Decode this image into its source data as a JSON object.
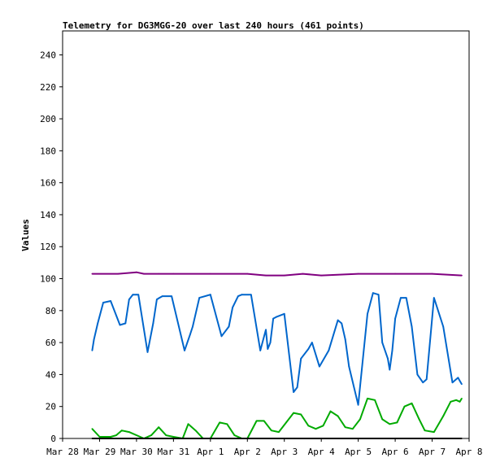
{
  "chart_data": {
    "type": "line",
    "title": "Telemetry for DG3MGG-20 over last 240 hours (461 points)",
    "xlabel": "",
    "ylabel": "Values",
    "ylim": [
      0,
      255
    ],
    "yticks": [
      0,
      20,
      40,
      60,
      80,
      100,
      120,
      140,
      160,
      180,
      200,
      220,
      240
    ],
    "xlim": [
      0,
      11
    ],
    "xticks": [
      "Mar 28",
      "Mar 29",
      "Mar 30",
      "Mar 31",
      "Apr 1",
      "Apr 2",
      "Apr 3",
      "Apr 4",
      "Apr 5",
      "Apr 6",
      "Apr 7",
      "Apr 8"
    ],
    "grid": false,
    "legend": "none",
    "series": [
      {
        "color": "#800080",
        "x": [
          0.8,
          1.5,
          2.0,
          2.2,
          2.6,
          3.0,
          4.0,
          5.0,
          5.5,
          6.0,
          6.5,
          7.0,
          8.0,
          9.0,
          10.0,
          10.8
        ],
        "y": [
          103,
          103,
          104,
          103,
          103,
          103,
          103,
          103,
          102,
          102,
          103,
          102,
          103,
          103,
          103,
          102
        ]
      },
      {
        "color": "#0066cc",
        "x": [
          0.8,
          0.85,
          0.95,
          1.1,
          1.3,
          1.55,
          1.7,
          1.8,
          1.9,
          2.0,
          2.05,
          2.3,
          2.45,
          2.55,
          2.62,
          2.7,
          2.95,
          3.3,
          3.45,
          3.52,
          3.7,
          4.0,
          4.3,
          4.5,
          4.6,
          4.75,
          4.85,
          5.1,
          5.35,
          5.5,
          5.55,
          5.62,
          5.7,
          5.78,
          6.0,
          6.25,
          6.35,
          6.45,
          6.65,
          6.75,
          6.95,
          7.2,
          7.45,
          7.55,
          7.65,
          7.75,
          8.0,
          8.25,
          8.4,
          8.55,
          8.65,
          8.8,
          8.85,
          8.92,
          9.0,
          9.15,
          9.3,
          9.45,
          9.6,
          9.75,
          9.85,
          10.05,
          10.3,
          10.55,
          10.7,
          10.75,
          10.8
        ],
        "y": [
          55,
          62,
          72,
          85,
          86,
          71,
          72,
          87,
          90,
          90,
          90,
          54,
          72,
          87,
          88,
          89,
          89,
          55,
          65,
          70,
          88,
          90,
          64,
          70,
          82,
          89,
          90,
          90,
          55,
          68,
          56,
          60,
          75,
          76,
          78,
          29,
          32,
          50,
          56,
          60,
          45,
          55,
          74,
          72,
          62,
          45,
          21,
          78,
          91,
          90,
          60,
          50,
          43,
          55,
          75,
          88,
          88,
          70,
          40,
          35,
          37,
          88,
          70,
          35,
          38,
          36,
          34
        ]
      },
      {
        "color": "#00aa00",
        "x": [
          0.8,
          1.0,
          1.3,
          1.45,
          1.6,
          1.8,
          2.2,
          2.4,
          2.6,
          2.8,
          3.0,
          3.25,
          3.4,
          3.6,
          3.8,
          4.0,
          4.25,
          4.45,
          4.65,
          4.85,
          5.0,
          5.25,
          5.45,
          5.65,
          5.85,
          6.05,
          6.25,
          6.45,
          6.65,
          6.85,
          7.05,
          7.25,
          7.45,
          7.65,
          7.85,
          8.05,
          8.25,
          8.45,
          8.65,
          8.85,
          9.05,
          9.25,
          9.45,
          9.65,
          9.8,
          10.05,
          10.3,
          10.5,
          10.65,
          10.75,
          10.8
        ],
        "y": [
          6,
          1,
          1,
          2,
          5,
          4,
          0,
          2,
          7,
          2,
          1,
          0,
          9,
          5,
          0,
          0,
          10,
          9,
          2,
          0,
          0,
          11,
          11,
          5,
          4,
          10,
          16,
          15,
          8,
          6,
          8,
          17,
          14,
          7,
          6,
          12,
          25,
          24,
          12,
          9,
          10,
          20,
          22,
          12,
          5,
          4,
          14,
          23,
          24,
          23,
          25
        ]
      },
      {
        "color": "#000000",
        "x": [
          0.8,
          10.8
        ],
        "y": [
          0,
          0
        ]
      }
    ]
  }
}
